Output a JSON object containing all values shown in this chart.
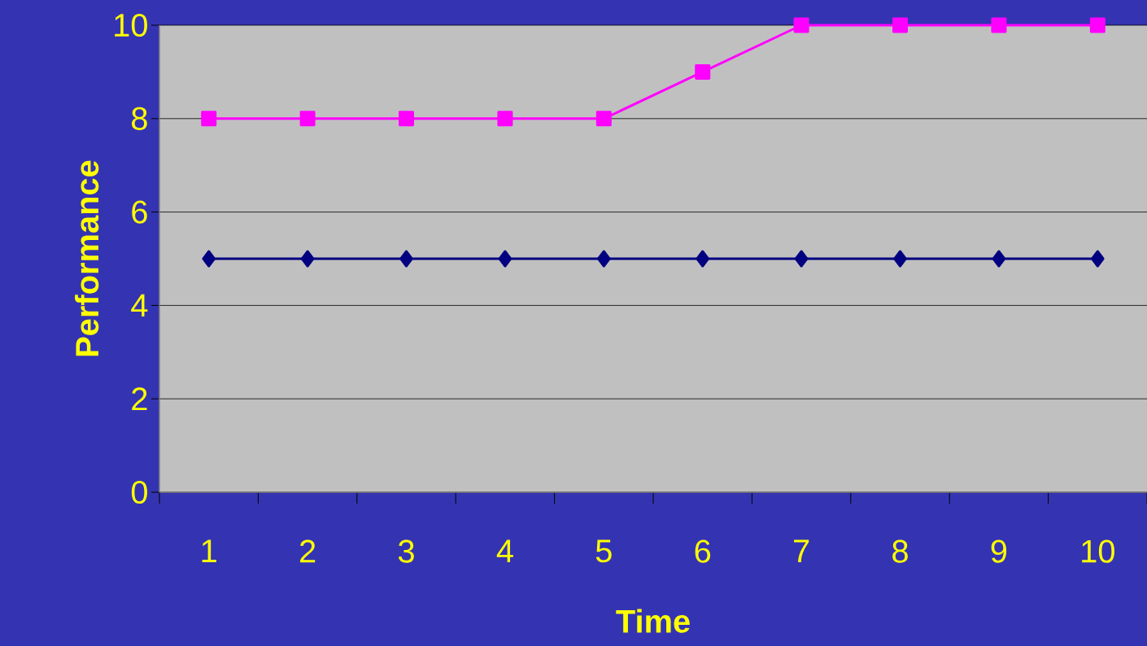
{
  "chart_data": {
    "type": "line",
    "xlabel": "Time",
    "ylabel": "Performance",
    "categories": [
      "1",
      "2",
      "3",
      "4",
      "5",
      "6",
      "7",
      "8",
      "9",
      "10"
    ],
    "series": [
      {
        "color": "#000080",
        "marker": "diamond",
        "values": [
          5,
          5,
          5,
          5,
          5,
          5,
          5,
          5,
          5,
          5
        ]
      },
      {
        "color": "#ff00ff",
        "marker": "square",
        "values": [
          8,
          8,
          8,
          8,
          8,
          9,
          10,
          10,
          10,
          10
        ]
      }
    ],
    "ylim": [
      0,
      10
    ],
    "yticks": [
      0,
      2,
      4,
      6,
      8,
      10
    ],
    "grid": "y"
  }
}
